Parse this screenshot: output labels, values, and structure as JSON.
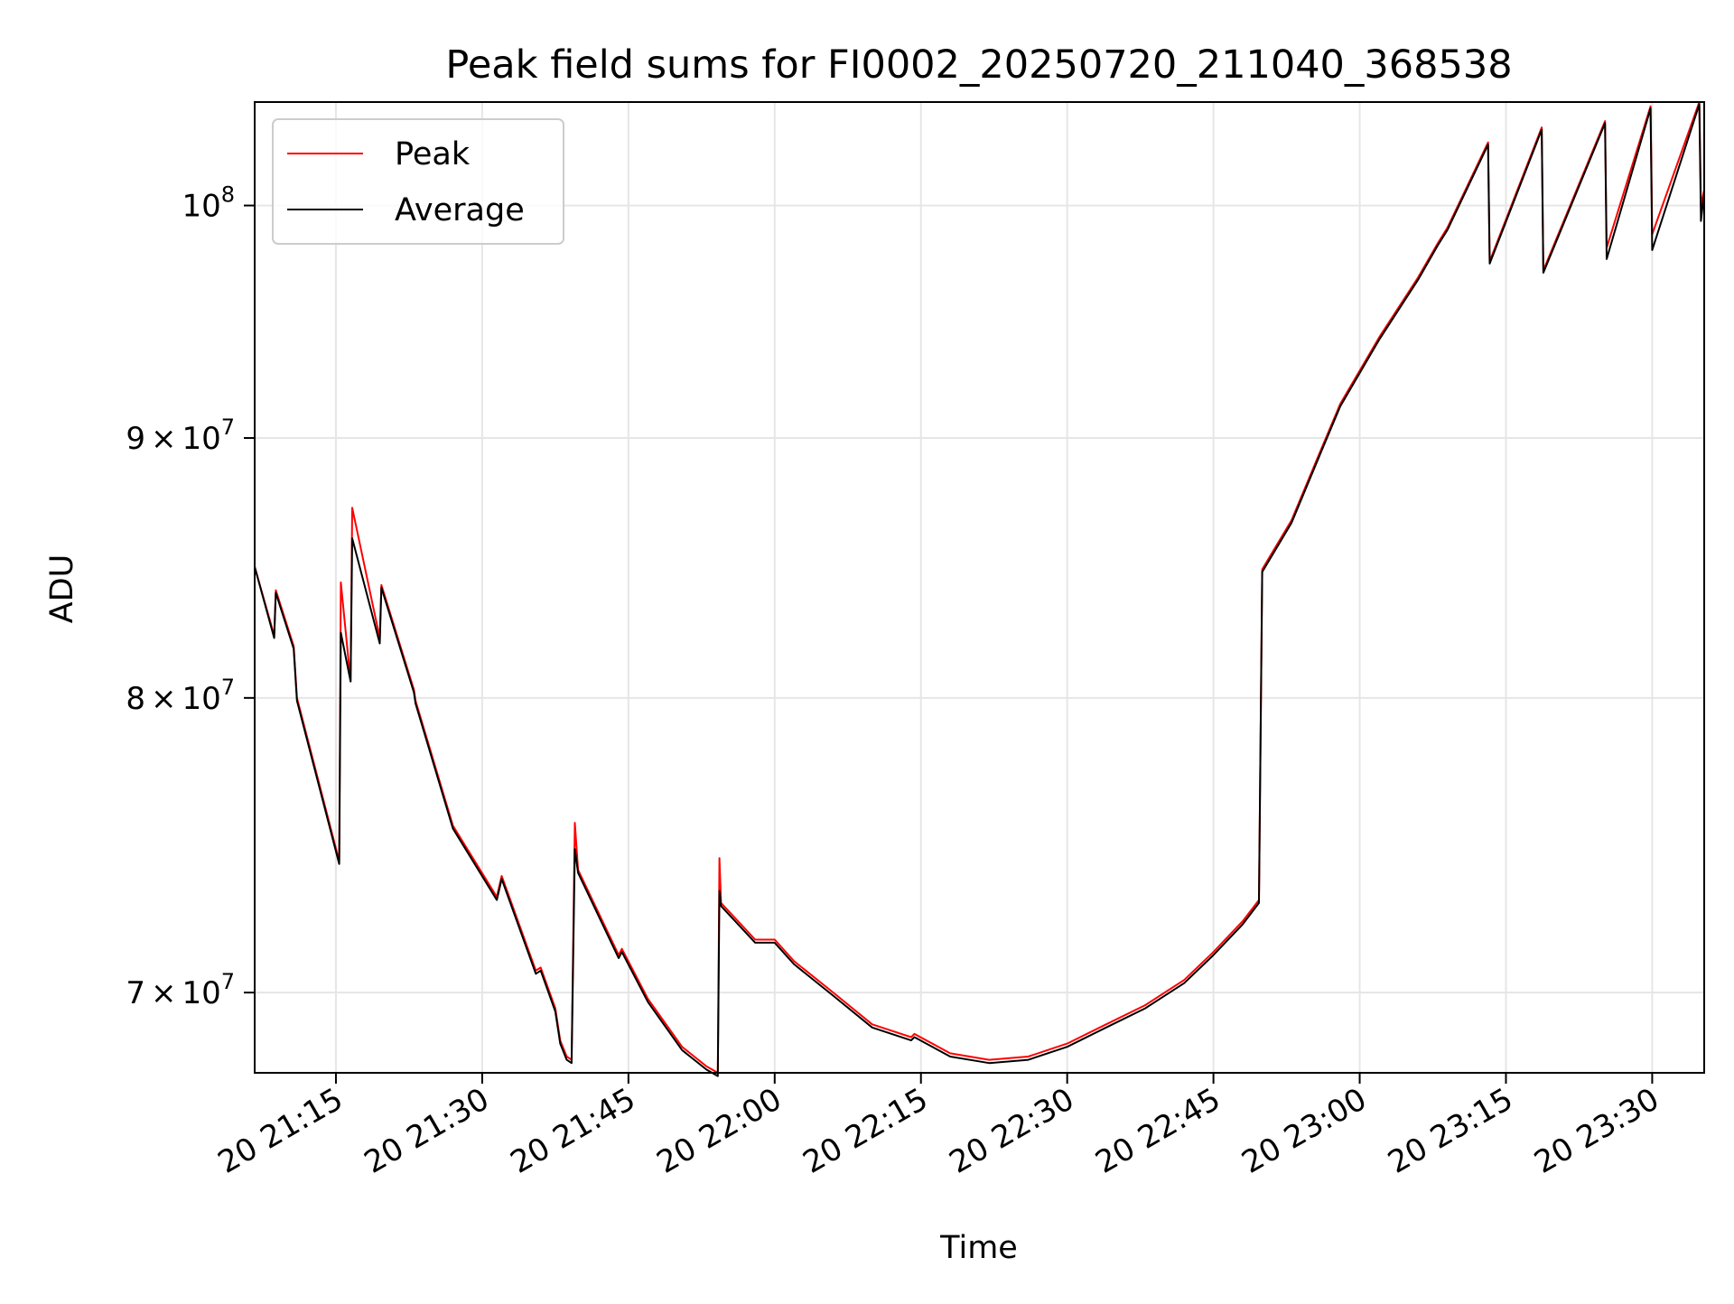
{
  "chart_data": {
    "type": "line",
    "title": "Peak field sums for FI0002_20250720_211040_368538",
    "xlabel": "Time",
    "ylabel": "ADU",
    "x_range": [
      "2025-07-20 21:06:40",
      "2025-07-20 23:35:20"
    ],
    "y_scale": "log",
    "y_range": [
      67500000,
      104800000
    ],
    "grid": true,
    "legend_position": "top-left",
    "x_ticks": [
      {
        "t": "2025-07-20 21:15",
        "label": "20 21:15"
      },
      {
        "t": "2025-07-20 21:30",
        "label": "20 21:30"
      },
      {
        "t": "2025-07-20 21:45",
        "label": "20 21:45"
      },
      {
        "t": "2025-07-20 22:00",
        "label": "20 22:00"
      },
      {
        "t": "2025-07-20 22:15",
        "label": "20 22:15"
      },
      {
        "t": "2025-07-20 22:30",
        "label": "20 22:30"
      },
      {
        "t": "2025-07-20 22:45",
        "label": "20 22:45"
      },
      {
        "t": "2025-07-20 23:00",
        "label": "20 23:00"
      },
      {
        "t": "2025-07-20 23:15",
        "label": "20 23:15"
      },
      {
        "t": "2025-07-20 23:30",
        "label": "20 23:30"
      }
    ],
    "y_ticks": [
      {
        "value": 70000000,
        "mant": "7",
        "exp": "7",
        "mult": true
      },
      {
        "value": 80000000,
        "mant": "8",
        "exp": "7",
        "mult": true
      },
      {
        "value": 90000000,
        "mant": "9",
        "exp": "7",
        "mult": true
      },
      {
        "value": 100000000,
        "mant": "10",
        "exp": "8",
        "mult": false
      }
    ],
    "series": [
      {
        "name": "Peak",
        "color": "#ff0000",
        "points": [
          [
            "2025-07-20 21:06:40",
            84900000
          ],
          [
            "2025-07-20 21:08:40",
            82300000
          ],
          [
            "2025-07-20 21:08:50",
            84000000
          ],
          [
            "2025-07-20 21:10:40",
            81900000
          ],
          [
            "2025-07-20 21:11:00",
            80000000
          ],
          [
            "2025-07-20 21:15:20",
            74300000
          ],
          [
            "2025-07-20 21:15:30",
            84300000
          ],
          [
            "2025-07-20 21:16:30",
            80600000
          ],
          [
            "2025-07-20 21:16:40",
            87200000
          ],
          [
            "2025-07-20 21:19:30",
            82200000
          ],
          [
            "2025-07-20 21:19:40",
            84200000
          ],
          [
            "2025-07-20 21:23:00",
            80300000
          ],
          [
            "2025-07-20 21:23:10",
            79900000
          ],
          [
            "2025-07-20 21:27:00",
            75500000
          ],
          [
            "2025-07-20 21:31:30",
            73100000
          ],
          [
            "2025-07-20 21:32:00",
            73800000
          ],
          [
            "2025-07-20 21:35:30",
            70700000
          ],
          [
            "2025-07-20 21:36:00",
            70800000
          ],
          [
            "2025-07-20 21:37:30",
            69500000
          ],
          [
            "2025-07-20 21:38:00",
            68500000
          ],
          [
            "2025-07-20 21:38:40",
            68000000
          ],
          [
            "2025-07-20 21:39:10",
            67900000
          ],
          [
            "2025-07-20 21:39:30",
            75600000
          ],
          [
            "2025-07-20 21:39:50",
            74000000
          ],
          [
            "2025-07-20 21:44:00",
            71200000
          ],
          [
            "2025-07-20 21:44:20",
            71400000
          ],
          [
            "2025-07-20 21:47:00",
            69800000
          ],
          [
            "2025-07-20 21:50:30",
            68300000
          ],
          [
            "2025-07-20 21:53:00",
            67700000
          ],
          [
            "2025-07-20 21:54:10",
            67500000
          ],
          [
            "2025-07-20 21:54:20",
            74400000
          ],
          [
            "2025-07-20 21:54:30",
            72900000
          ],
          [
            "2025-07-20 21:58:00",
            71700000
          ],
          [
            "2025-07-20 22:00:00",
            71700000
          ],
          [
            "2025-07-20 22:02:00",
            71000000
          ],
          [
            "2025-07-20 22:06:00",
            70000000
          ],
          [
            "2025-07-20 22:10:00",
            69000000
          ],
          [
            "2025-07-20 22:14:00",
            68600000
          ],
          [
            "2025-07-20 22:14:20",
            68700000
          ],
          [
            "2025-07-20 22:18:00",
            68100000
          ],
          [
            "2025-07-20 22:22:00",
            67900000
          ],
          [
            "2025-07-20 22:26:00",
            68000000
          ],
          [
            "2025-07-20 22:30:00",
            68400000
          ],
          [
            "2025-07-20 22:34:00",
            69000000
          ],
          [
            "2025-07-20 22:38:00",
            69600000
          ],
          [
            "2025-07-20 22:42:00",
            70400000
          ],
          [
            "2025-07-20 22:45:00",
            71300000
          ],
          [
            "2025-07-20 22:48:00",
            72300000
          ],
          [
            "2025-07-20 22:49:40",
            73000000
          ],
          [
            "2025-07-20 22:50:00",
            84800000
          ],
          [
            "2025-07-20 22:53:00",
            86700000
          ],
          [
            "2025-07-20 22:56:00",
            89500000
          ],
          [
            "2025-07-20 22:58:00",
            91400000
          ],
          [
            "2025-07-20 23:02:00",
            94200000
          ],
          [
            "2025-07-20 23:06:00",
            96800000
          ],
          [
            "2025-07-20 23:08:00",
            98300000
          ],
          [
            "2025-07-20 23:09:00",
            99000000
          ],
          [
            "2025-07-20 23:13:10",
            102900000
          ],
          [
            "2025-07-20 23:13:20",
            97500000
          ],
          [
            "2025-07-20 23:18:40",
            103600000
          ],
          [
            "2025-07-20 23:18:50",
            97100000
          ],
          [
            "2025-07-20 23:25:10",
            103900000
          ],
          [
            "2025-07-20 23:25:20",
            98100000
          ],
          [
            "2025-07-20 23:29:50",
            104600000
          ],
          [
            "2025-07-20 23:30:00",
            98700000
          ],
          [
            "2025-07-20 23:34:50",
            104800000
          ],
          [
            "2025-07-20 23:35:00",
            100000000
          ],
          [
            "2025-07-20 23:35:20",
            100700000
          ]
        ]
      },
      {
        "name": "Average",
        "color": "#000000",
        "points": [
          [
            "2025-07-20 21:06:40",
            84900000
          ],
          [
            "2025-07-20 21:08:40",
            82200000
          ],
          [
            "2025-07-20 21:08:50",
            83900000
          ],
          [
            "2025-07-20 21:10:40",
            81800000
          ],
          [
            "2025-07-20 21:11:00",
            79900000
          ],
          [
            "2025-07-20 21:15:20",
            74200000
          ],
          [
            "2025-07-20 21:15:30",
            82400000
          ],
          [
            "2025-07-20 21:16:30",
            80600000
          ],
          [
            "2025-07-20 21:16:40",
            86000000
          ],
          [
            "2025-07-20 21:19:30",
            82000000
          ],
          [
            "2025-07-20 21:19:40",
            84100000
          ],
          [
            "2025-07-20 21:23:00",
            80200000
          ],
          [
            "2025-07-20 21:23:10",
            79800000
          ],
          [
            "2025-07-20 21:27:00",
            75400000
          ],
          [
            "2025-07-20 21:31:30",
            73000000
          ],
          [
            "2025-07-20 21:32:00",
            73700000
          ],
          [
            "2025-07-20 21:35:30",
            70600000
          ],
          [
            "2025-07-20 21:36:00",
            70700000
          ],
          [
            "2025-07-20 21:37:30",
            69400000
          ],
          [
            "2025-07-20 21:38:00",
            68400000
          ],
          [
            "2025-07-20 21:38:40",
            67900000
          ],
          [
            "2025-07-20 21:39:10",
            67800000
          ],
          [
            "2025-07-20 21:39:30",
            74700000
          ],
          [
            "2025-07-20 21:39:50",
            73900000
          ],
          [
            "2025-07-20 21:44:00",
            71100000
          ],
          [
            "2025-07-20 21:44:20",
            71300000
          ],
          [
            "2025-07-20 21:47:00",
            69700000
          ],
          [
            "2025-07-20 21:50:30",
            68200000
          ],
          [
            "2025-07-20 21:53:00",
            67600000
          ],
          [
            "2025-07-20 21:54:10",
            67400000
          ],
          [
            "2025-07-20 21:54:20",
            73300000
          ],
          [
            "2025-07-20 21:54:30",
            72800000
          ],
          [
            "2025-07-20 21:58:00",
            71600000
          ],
          [
            "2025-07-20 22:00:00",
            71600000
          ],
          [
            "2025-07-20 22:02:00",
            70900000
          ],
          [
            "2025-07-20 22:06:00",
            69900000
          ],
          [
            "2025-07-20 22:10:00",
            68900000
          ],
          [
            "2025-07-20 22:14:00",
            68500000
          ],
          [
            "2025-07-20 22:14:20",
            68600000
          ],
          [
            "2025-07-20 22:18:00",
            68000000
          ],
          [
            "2025-07-20 22:22:00",
            67800000
          ],
          [
            "2025-07-20 22:26:00",
            67900000
          ],
          [
            "2025-07-20 22:30:00",
            68300000
          ],
          [
            "2025-07-20 22:34:00",
            68900000
          ],
          [
            "2025-07-20 22:38:00",
            69500000
          ],
          [
            "2025-07-20 22:42:00",
            70300000
          ],
          [
            "2025-07-20 22:45:00",
            71200000
          ],
          [
            "2025-07-20 22:48:00",
            72200000
          ],
          [
            "2025-07-20 22:49:40",
            72900000
          ],
          [
            "2025-07-20 22:50:00",
            84700000
          ],
          [
            "2025-07-20 22:53:00",
            86600000
          ],
          [
            "2025-07-20 22:56:00",
            89400000
          ],
          [
            "2025-07-20 22:58:00",
            91300000
          ],
          [
            "2025-07-20 23:02:00",
            94100000
          ],
          [
            "2025-07-20 23:06:00",
            96700000
          ],
          [
            "2025-07-20 23:08:00",
            98200000
          ],
          [
            "2025-07-20 23:09:00",
            98900000
          ],
          [
            "2025-07-20 23:13:10",
            102800000
          ],
          [
            "2025-07-20 23:13:20",
            97400000
          ],
          [
            "2025-07-20 23:18:40",
            103500000
          ],
          [
            "2025-07-20 23:18:50",
            97000000
          ],
          [
            "2025-07-20 23:25:10",
            103800000
          ],
          [
            "2025-07-20 23:25:20",
            97600000
          ],
          [
            "2025-07-20 23:29:50",
            104500000
          ],
          [
            "2025-07-20 23:30:00",
            98000000
          ],
          [
            "2025-07-20 23:34:50",
            104700000
          ],
          [
            "2025-07-20 23:35:00",
            99300000
          ],
          [
            "2025-07-20 23:35:20",
            100600000
          ]
        ]
      }
    ]
  }
}
